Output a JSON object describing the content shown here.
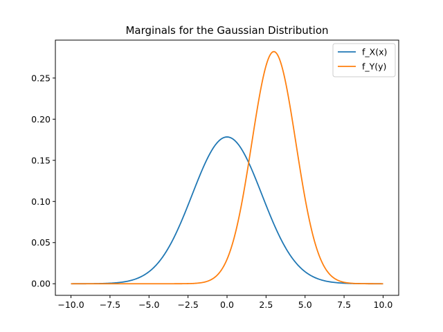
{
  "chart_data": {
    "type": "line",
    "title": "Marginals for the Gaussian Distribution",
    "xlabel": "",
    "ylabel": "",
    "xlim": [
      -11,
      11
    ],
    "ylim": [
      -0.0141,
      0.2961
    ],
    "x_ticks": [
      -10.0,
      -7.5,
      -5.0,
      -2.5,
      0.0,
      2.5,
      5.0,
      7.5,
      10.0
    ],
    "x_tick_labels": [
      "−10.0",
      "−7.5",
      "−5.0",
      "−2.5",
      "0.0",
      "2.5",
      "5.0",
      "7.5",
      "10.0"
    ],
    "y_ticks": [
      0.0,
      0.05,
      0.1,
      0.15,
      0.2,
      0.25
    ],
    "y_tick_labels": [
      "0.00",
      "0.05",
      "0.10",
      "0.15",
      "0.20",
      "0.25"
    ],
    "grid": false,
    "legend_position": "top-right",
    "x_range": [
      -10,
      10
    ],
    "series": [
      {
        "name": "f_X(x)",
        "color": "#1f77b4",
        "distribution": "normal",
        "mean": 0.0,
        "std": 2.236
      },
      {
        "name": "f_Y(y)",
        "color": "#ff7f0e",
        "distribution": "normal",
        "mean": 3.0,
        "std": 1.414
      }
    ]
  }
}
